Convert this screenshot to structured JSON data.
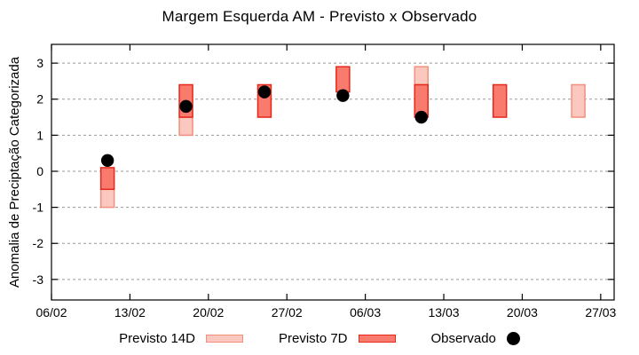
{
  "chart_data": {
    "type": "bar",
    "subtype": "forecast-range-boxes-with-observed-points",
    "title": "Margem Esquerda AM - Previsto x Observado",
    "ylabel": "Anomalia de Preciptação Categorizada",
    "xlabel": "",
    "grid": "horizontal dashed",
    "legend_position": "bottom center",
    "colors": {
      "grid": "#999999",
      "frame": "#000000",
      "background": "#ffffff"
    },
    "y_axis": {
      "ticks": [
        3,
        2,
        1,
        0,
        -1,
        -2,
        -3
      ],
      "range": [
        -3.57,
        3.52
      ]
    },
    "x_axis": {
      "range_days": [
        0,
        50.2
      ],
      "ticks": [
        {
          "label": "06/02",
          "day": 0
        },
        {
          "label": "13/02",
          "day": 7
        },
        {
          "label": "20/02",
          "day": 14
        },
        {
          "label": "27/02",
          "day": 21
        },
        {
          "label": "06/03",
          "day": 28
        },
        {
          "label": "13/03",
          "day": 35
        },
        {
          "label": "20/03",
          "day": 42
        },
        {
          "label": "27/03",
          "day": 49
        }
      ]
    },
    "series": [
      {
        "name": "Previsto 14D",
        "type": "box",
        "color": "#fac8bf",
        "border": "#f0907e",
        "boxes": [
          {
            "date": "11/02",
            "day": 5,
            "low": -1.0,
            "high": -0.5
          },
          {
            "date": "18/02",
            "day": 12,
            "low": 1.0,
            "high": 1.5
          },
          {
            "date": "11/03",
            "day": 33,
            "low": 2.4,
            "high": 2.9
          },
          {
            "date": "25/03",
            "day": 47,
            "low": 1.5,
            "high": 2.4
          }
        ]
      },
      {
        "name": "Previsto 7D",
        "type": "box",
        "color": "#f97b6d",
        "border": "#e5281b",
        "boxes": [
          {
            "date": "11/02",
            "day": 5,
            "low": -0.5,
            "high": 0.1
          },
          {
            "date": "18/02",
            "day": 12,
            "low": 1.5,
            "high": 2.4
          },
          {
            "date": "25/02",
            "day": 19,
            "low": 1.5,
            "high": 2.4
          },
          {
            "date": "04/03",
            "day": 26,
            "low": 2.2,
            "high": 2.9
          },
          {
            "date": "11/03",
            "day": 33,
            "low": 1.5,
            "high": 2.4
          },
          {
            "date": "18/03",
            "day": 40,
            "low": 1.5,
            "high": 2.4
          }
        ]
      },
      {
        "name": "Observado",
        "type": "point",
        "color": "#000000",
        "points": [
          {
            "date": "11/02",
            "day": 5,
            "value": 0.3
          },
          {
            "date": "18/02",
            "day": 12,
            "value": 1.8
          },
          {
            "date": "25/02",
            "day": 19,
            "value": 2.2
          },
          {
            "date": "04/03",
            "day": 26,
            "value": 2.1
          },
          {
            "date": "11/03",
            "day": 33,
            "value": 1.5
          }
        ]
      }
    ]
  }
}
